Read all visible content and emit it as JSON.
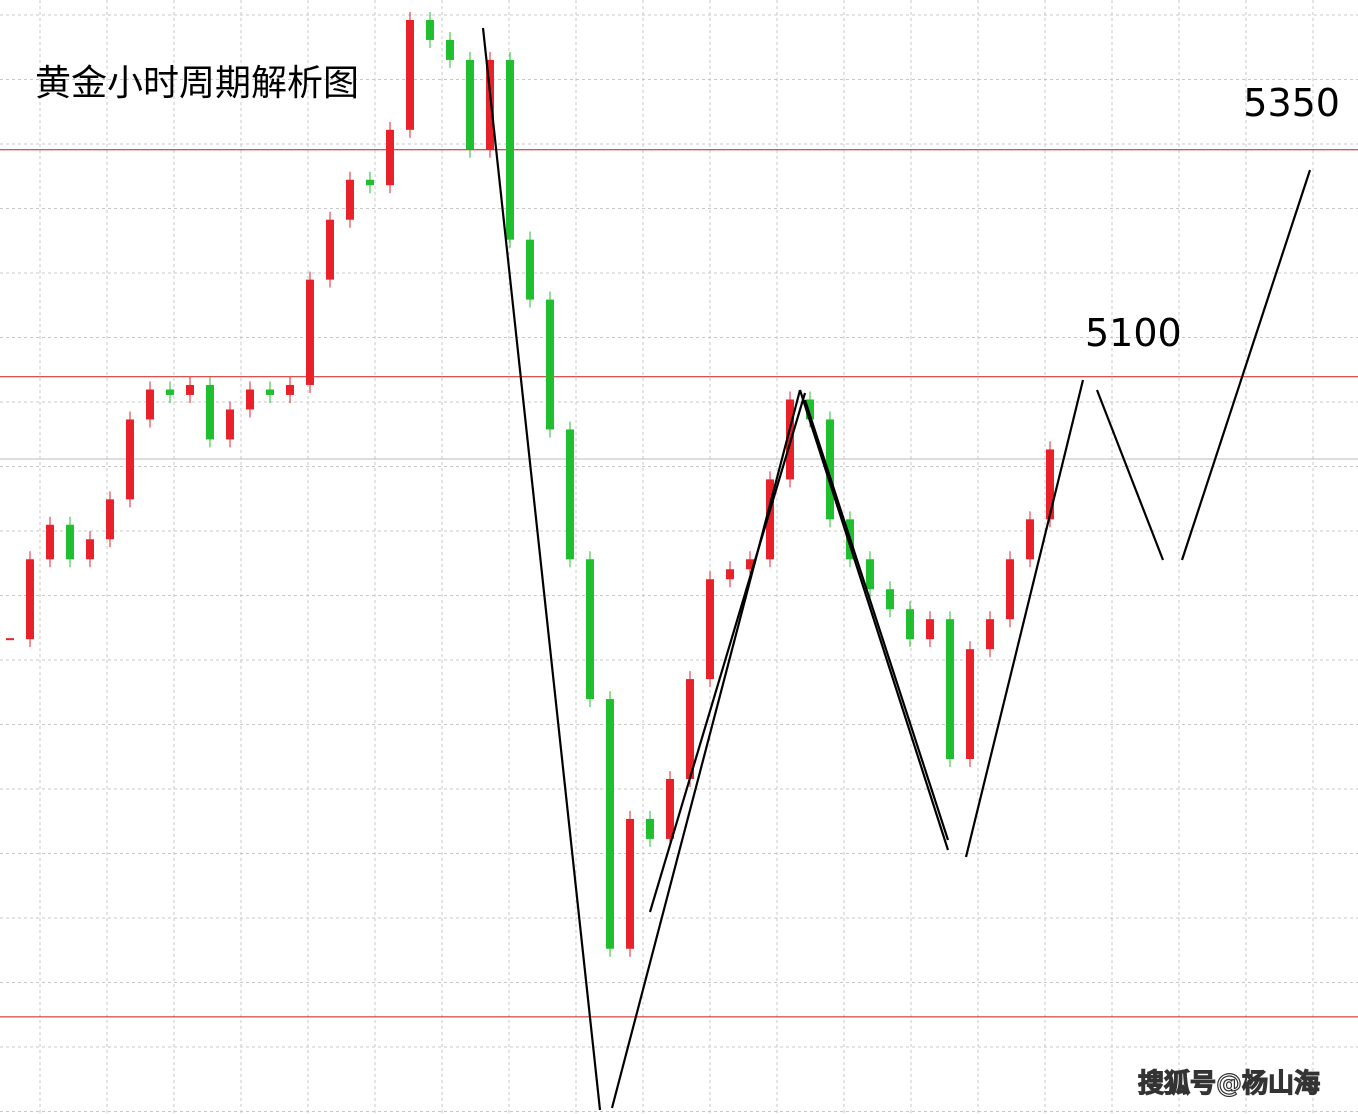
{
  "chart_data": {
    "type": "candlestick",
    "title": "黄金小时周期解析图",
    "watermark": "搜狐号@杨山海",
    "ylim": [
      4288,
      5515
    ],
    "up_color": "#e8212b",
    "down_color": "#1fbf2f",
    "level_color": "#cc1a1a",
    "levels": [
      {
        "value": 5350,
        "label": "5350"
      },
      {
        "value": 5100,
        "label": "5100"
      },
      {
        "value": 4395
      }
    ],
    "values": [
      4811,
      4899,
      4937,
      4899,
      4921,
      4965,
      5053,
      5086,
      5080,
      5091,
      5031,
      5064,
      5086,
      5080,
      5091,
      5207,
      5273,
      5317,
      5311,
      5372,
      5493,
      5471,
      5449,
      5350,
      5449,
      5251,
      5185,
      5042,
      4899,
      4745,
      4470,
      4613,
      4591,
      4657,
      4767,
      4877,
      4888,
      4899,
      4987,
      5075,
      5053,
      4943,
      4899,
      4866,
      4844,
      4811,
      4833,
      4679,
      4800,
      4833,
      4899,
      4943,
      5020
    ]
  }
}
